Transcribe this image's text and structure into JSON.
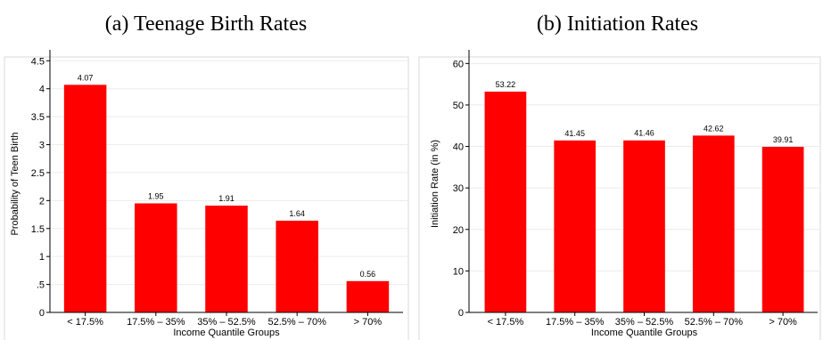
{
  "chart_data": [
    {
      "type": "bar",
      "title": "(a) Teenage Birth Rates",
      "xlabel": "Income Quantile Groups",
      "ylabel": "Probability of Teen Birth",
      "categories": [
        "< 17.5%",
        "17.5% – 35%",
        "35% – 52.5%",
        "52.5% – 70%",
        "> 70%"
      ],
      "values": [
        4.07,
        1.95,
        1.91,
        1.64,
        0.56
      ],
      "data_labels": [
        "4.07",
        "1.95",
        "1.91",
        "1.64",
        "0.56"
      ],
      "ylim": [
        0,
        4.6
      ],
      "yticks": [
        0,
        0.5,
        1,
        1.5,
        2,
        2.5,
        3,
        3.5,
        4,
        4.5
      ],
      "ytick_labels": [
        "0",
        ".5",
        "1",
        "1.5",
        "2",
        "2.5",
        "3",
        "3.5",
        "4",
        "4.5"
      ],
      "grid": true,
      "bar_color": "#ff0000"
    },
    {
      "type": "bar",
      "title": "(b) Initiation Rates",
      "xlabel": "Income Quantile Groups",
      "ylabel": "Initiation Rate (in %)",
      "categories": [
        "< 17.5%",
        "17.5% – 35%",
        "35% – 52.5%",
        "52.5% – 70%",
        "> 70%"
      ],
      "values": [
        53.22,
        41.45,
        41.46,
        42.62,
        39.91
      ],
      "data_labels": [
        "53.22",
        "41.45",
        "41.46",
        "42.62",
        "39.91"
      ],
      "ylim": [
        0,
        62
      ],
      "yticks": [
        0,
        10,
        20,
        30,
        40,
        50,
        60
      ],
      "ytick_labels": [
        "0",
        "10",
        "20",
        "30",
        "40",
        "50",
        "60"
      ],
      "grid": true,
      "bar_color": "#ff0000"
    }
  ]
}
